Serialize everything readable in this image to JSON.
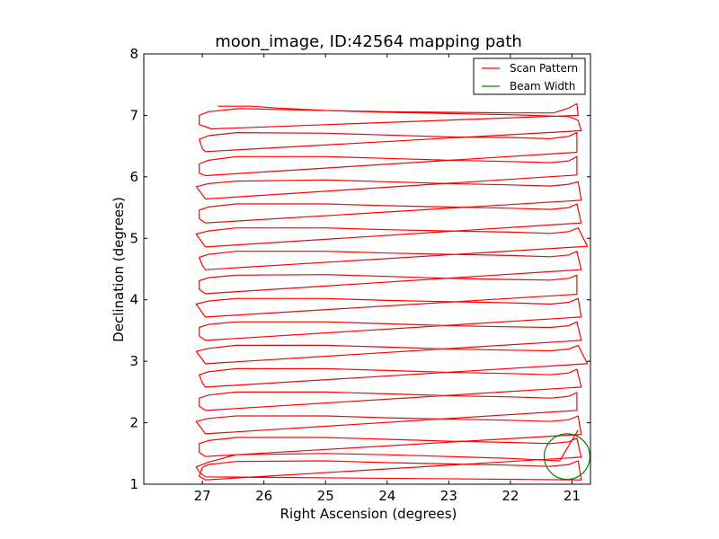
{
  "chart_data": {
    "type": "line",
    "title": "moon_image, ID:42564 mapping path",
    "xlabel": "Right Ascension (degrees)",
    "ylabel": "Declination (degrees)",
    "xlim": [
      27.95,
      20.7
    ],
    "ylim": [
      1,
      8
    ],
    "x_ticks": [
      27,
      26,
      25,
      24,
      23,
      22,
      21
    ],
    "y_ticks": [
      1,
      2,
      3,
      4,
      5,
      6,
      7,
      8
    ],
    "legend": {
      "placement": "top-right",
      "entries": [
        {
          "label": "Scan Pattern",
          "color": "#ff0000"
        },
        {
          "label": "Beam Width",
          "color": "#008000"
        }
      ]
    },
    "series": [
      {
        "name": "Scan Pattern",
        "color": "#ff0000",
        "x": [
          26.75,
          26.2,
          25.8,
          25.0,
          24.0,
          23.0,
          22.0,
          21.3,
          21.05,
          20.92,
          20.9,
          26.85,
          27.05,
          27.05,
          26.9,
          26.4,
          25.0,
          24.0,
          23.0,
          22.0,
          21.35,
          21.05,
          20.9,
          20.85,
          26.95,
          27.0,
          27.05,
          26.9,
          26.45,
          25.0,
          24.0,
          23.0,
          22.0,
          21.35,
          21.05,
          20.92,
          20.92,
          26.95,
          27.05,
          27.05,
          26.9,
          26.45,
          25.0,
          24.0,
          23.0,
          22.0,
          21.35,
          21.05,
          20.92,
          20.92,
          26.95,
          27.0,
          27.1,
          26.9,
          26.45,
          25.0,
          24.0,
          23.0,
          22.0,
          21.35,
          21.05,
          20.9,
          20.85,
          26.95,
          27.05,
          27.05,
          26.9,
          26.45,
          25.0,
          24.0,
          23.0,
          22.0,
          21.35,
          21.05,
          20.92,
          20.85,
          26.95,
          27.0,
          27.1,
          26.9,
          26.45,
          25.0,
          24.0,
          23.0,
          22.0,
          21.35,
          21.05,
          20.9,
          20.75,
          26.95,
          27.0,
          27.05,
          26.9,
          26.45,
          25.0,
          24.0,
          23.0,
          22.0,
          21.35,
          21.05,
          20.92,
          20.85,
          26.95,
          27.05,
          27.05,
          26.9,
          26.45,
          25.0,
          24.0,
          23.0,
          22.0,
          21.35,
          21.05,
          20.92,
          20.92,
          26.95,
          27.0,
          27.1,
          26.9,
          26.45,
          25.0,
          24.0,
          23.0,
          22.0,
          21.35,
          21.05,
          20.9,
          20.85,
          26.95,
          27.05,
          27.05,
          26.9,
          26.45,
          25.0,
          24.0,
          23.0,
          22.0,
          21.35,
          21.05,
          20.92,
          20.85,
          26.95,
          27.0,
          27.1,
          26.9,
          26.45,
          25.0,
          24.0,
          23.0,
          22.0,
          21.35,
          21.05,
          20.9,
          20.75,
          26.95,
          27.0,
          27.05,
          26.9,
          26.45,
          25.0,
          24.0,
          23.0,
          22.0,
          21.35,
          21.05,
          20.92,
          20.85,
          26.95,
          27.05,
          27.05,
          26.9,
          26.45,
          25.0,
          24.0,
          23.0,
          22.0,
          21.35,
          21.05,
          20.92,
          20.92,
          26.95,
          27.0,
          27.1,
          26.9,
          26.45,
          25.0,
          24.0,
          23.0,
          22.0,
          21.35,
          21.05,
          20.9,
          20.85,
          26.95,
          27.05,
          27.05,
          26.9,
          26.45,
          25.0,
          24.0,
          23.0,
          22.0,
          21.35,
          21.05,
          20.92,
          20.85,
          26.95,
          27.05,
          27.0,
          26.9,
          26.45,
          25.0,
          24.0,
          23.0,
          22.0,
          21.35,
          21.05,
          20.9,
          20.85,
          26.95,
          27.05,
          27.1,
          26.9,
          26.45,
          25.0,
          24.0,
          23.0,
          22.0,
          21.2,
          20.9
        ],
        "y": [
          7.15,
          7.15,
          7.12,
          7.08,
          7.06,
          7.05,
          7.04,
          7.04,
          7.12,
          7.19,
          7.0,
          6.78,
          6.85,
          7.0,
          7.06,
          7.11,
          7.08,
          7.05,
          7.03,
          7.01,
          6.99,
          6.98,
          6.92,
          6.75,
          6.41,
          6.46,
          6.61,
          6.67,
          6.72,
          6.71,
          6.68,
          6.65,
          6.64,
          6.62,
          6.66,
          6.72,
          6.4,
          6.02,
          6.06,
          6.21,
          6.27,
          6.33,
          6.33,
          6.3,
          6.27,
          6.25,
          6.23,
          6.26,
          6.33,
          6.03,
          5.64,
          5.71,
          5.84,
          5.89,
          5.93,
          5.95,
          5.92,
          5.89,
          5.87,
          5.85,
          5.88,
          5.92,
          5.62,
          5.25,
          5.32,
          5.46,
          5.51,
          5.56,
          5.56,
          5.53,
          5.51,
          5.49,
          5.47,
          5.5,
          5.56,
          5.25,
          4.86,
          4.93,
          5.07,
          5.12,
          5.17,
          5.17,
          5.14,
          5.12,
          5.1,
          5.08,
          5.11,
          5.17,
          4.87,
          4.49,
          4.56,
          4.69,
          4.74,
          4.79,
          4.79,
          4.76,
          4.74,
          4.72,
          4.7,
          4.73,
          4.79,
          4.49,
          4.1,
          4.17,
          4.31,
          4.36,
          4.4,
          4.41,
          4.38,
          4.35,
          4.33,
          4.32,
          4.35,
          4.4,
          4.09,
          3.72,
          3.79,
          3.93,
          3.98,
          4.02,
          4.02,
          3.99,
          3.97,
          3.95,
          3.93,
          3.96,
          4.02,
          3.72,
          3.34,
          3.41,
          3.55,
          3.6,
          3.64,
          3.64,
          3.61,
          3.58,
          3.56,
          3.55,
          3.58,
          3.64,
          3.34,
          2.96,
          3.03,
          3.16,
          3.21,
          3.26,
          3.26,
          3.23,
          3.2,
          3.18,
          3.17,
          3.2,
          3.26,
          2.96,
          2.58,
          2.65,
          2.78,
          2.83,
          2.88,
          2.88,
          2.85,
          2.82,
          2.8,
          2.78,
          2.81,
          2.87,
          2.58,
          2.2,
          2.27,
          2.4,
          2.45,
          2.5,
          2.5,
          2.47,
          2.44,
          2.42,
          2.4,
          2.43,
          2.49,
          2.2,
          1.82,
          1.89,
          2.02,
          2.07,
          2.11,
          2.11,
          2.08,
          2.06,
          2.04,
          2.02,
          2.05,
          2.11,
          1.81,
          1.45,
          1.52,
          1.66,
          1.71,
          1.76,
          1.76,
          1.73,
          1.7,
          1.68,
          1.66,
          1.69,
          1.75,
          1.44,
          1.07,
          1.13,
          1.27,
          1.32,
          1.37,
          1.38,
          1.35,
          1.33,
          1.31,
          1.29,
          1.32,
          1.38,
          1.07,
          1.12,
          1.2,
          1.28,
          1.36,
          1.48,
          1.5,
          1.48,
          1.45,
          1.42,
          1.38,
          1.88
        ]
      }
    ],
    "beam": {
      "name": "Beam Width",
      "color": "#008000",
      "ra": 21.08,
      "dec": 1.45,
      "radius_deg": 0.37
    }
  }
}
